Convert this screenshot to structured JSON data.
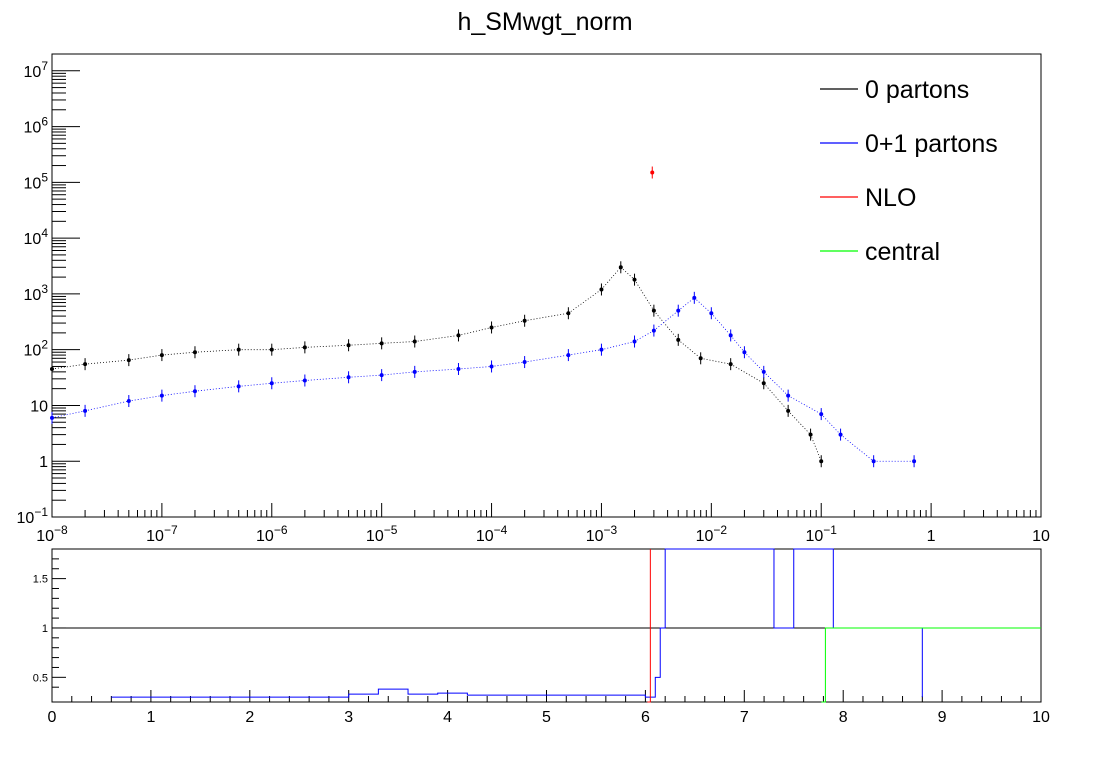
{
  "chart_data": [
    {
      "type": "scatter",
      "title": "h_SMwgt_norm",
      "xscale": "log",
      "yscale": "log",
      "xlim": [
        1e-08,
        10
      ],
      "ylim": [
        0.1,
        20000000
      ],
      "x_ticks": [
        {
          "base": "10",
          "exp": "−8"
        },
        {
          "base": "10",
          "exp": "−7"
        },
        {
          "base": "10",
          "exp": "−6"
        },
        {
          "base": "10",
          "exp": "−5"
        },
        {
          "base": "10",
          "exp": "−4"
        },
        {
          "base": "10",
          "exp": "−3"
        },
        {
          "base": "10",
          "exp": "−2"
        },
        {
          "base": "10",
          "exp": "−1"
        },
        {
          "base": "1",
          "exp": ""
        },
        {
          "base": "10",
          "exp": ""
        }
      ],
      "y_ticks": [
        {
          "base": "10",
          "exp": "−1"
        },
        {
          "base": "1",
          "exp": ""
        },
        {
          "base": "10",
          "exp": ""
        },
        {
          "base": "10",
          "exp": "2"
        },
        {
          "base": "10",
          "exp": "3"
        },
        {
          "base": "10",
          "exp": "4"
        },
        {
          "base": "10",
          "exp": "5"
        },
        {
          "base": "10",
          "exp": "6"
        },
        {
          "base": "10",
          "exp": "7"
        }
      ],
      "legend_position": "top-right",
      "series": [
        {
          "name": "0 partons",
          "color": "#000000",
          "points": [
            [
              1e-08,
              45
            ],
            [
              2e-08,
              55
            ],
            [
              5e-08,
              65
            ],
            [
              1e-07,
              80
            ],
            [
              2e-07,
              90
            ],
            [
              5e-07,
              100
            ],
            [
              1e-06,
              100
            ],
            [
              2e-06,
              110
            ],
            [
              5e-06,
              120
            ],
            [
              1e-05,
              130
            ],
            [
              2e-05,
              140
            ],
            [
              5e-05,
              180
            ],
            [
              0.0001,
              250
            ],
            [
              0.0002,
              330
            ],
            [
              0.0005,
              450
            ],
            [
              0.001,
              1200
            ],
            [
              0.0015,
              3000
            ],
            [
              0.002,
              1800
            ],
            [
              0.003,
              500
            ],
            [
              0.005,
              150
            ],
            [
              0.008,
              70
            ],
            [
              0.015,
              55
            ],
            [
              0.03,
              25
            ],
            [
              0.05,
              8
            ],
            [
              0.08,
              3
            ],
            [
              0.1,
              1
            ]
          ]
        },
        {
          "name": "0+1 partons",
          "color": "#0000ff",
          "points": [
            [
              1e-08,
              6
            ],
            [
              2e-08,
              8
            ],
            [
              5e-08,
              12
            ],
            [
              1e-07,
              15
            ],
            [
              2e-07,
              18
            ],
            [
              5e-07,
              22
            ],
            [
              1e-06,
              25
            ],
            [
              2e-06,
              28
            ],
            [
              5e-06,
              32
            ],
            [
              1e-05,
              35
            ],
            [
              2e-05,
              40
            ],
            [
              5e-05,
              45
            ],
            [
              0.0001,
              50
            ],
            [
              0.0002,
              60
            ],
            [
              0.0005,
              80
            ],
            [
              0.001,
              100
            ],
            [
              0.002,
              140
            ],
            [
              0.003,
              220
            ],
            [
              0.005,
              500
            ],
            [
              0.007,
              850
            ],
            [
              0.01,
              450
            ],
            [
              0.015,
              180
            ],
            [
              0.02,
              90
            ],
            [
              0.03,
              40
            ],
            [
              0.05,
              15
            ],
            [
              0.1,
              7
            ],
            [
              0.15,
              3
            ],
            [
              0.3,
              1
            ],
            [
              0.7,
              1
            ]
          ]
        },
        {
          "name": "NLO",
          "color": "#ff0000",
          "points": [
            [
              0.0029,
              150000
            ]
          ]
        },
        {
          "name": "central",
          "color": "#00ff00",
          "points": []
        }
      ]
    },
    {
      "type": "line",
      "xlim": [
        0,
        10
      ],
      "ylim": [
        0.25,
        1.8
      ],
      "x_ticks": [
        "0",
        "1",
        "2",
        "3",
        "4",
        "5",
        "6",
        "7",
        "8",
        "9",
        "10"
      ],
      "y_ticks": [
        "0.5",
        "1",
        "1.5"
      ],
      "reference_line": 1,
      "series": [
        {
          "name": "0+1 partons",
          "color": "#0000ff",
          "points": [
            [
              0.6,
              0.3
            ],
            [
              1,
              0.3
            ],
            [
              2.6,
              0.3
            ],
            [
              3.0,
              0.33
            ],
            [
              3.3,
              0.38
            ],
            [
              3.6,
              0.33
            ],
            [
              3.9,
              0.34
            ],
            [
              4.2,
              0.32
            ],
            [
              6.0,
              0.3
            ],
            [
              6.1,
              0.5
            ],
            [
              6.15,
              1.0
            ],
            [
              6.2,
              1.8
            ],
            [
              7.0,
              1.8
            ],
            [
              7.3,
              1.0
            ],
            [
              7.5,
              1.8
            ],
            [
              7.6,
              1.8
            ],
            [
              7.9,
              1.0
            ],
            [
              8.2,
              1.0
            ],
            [
              8.5,
              1.0
            ],
            [
              8.8,
              0.3
            ]
          ]
        },
        {
          "name": "NLO",
          "color": "#ff0000",
          "points": [
            [
              6.02,
              0.25
            ],
            [
              6.05,
              1.8
            ]
          ]
        },
        {
          "name": "central",
          "color": "#00ff00",
          "points": [
            [
              7.78,
              0.25
            ],
            [
              7.82,
              1.0
            ],
            [
              8.05,
              1.0
            ],
            [
              8.6,
              1.0
            ],
            [
              9.0,
              1.0
            ],
            [
              10.0,
              1.0
            ]
          ]
        }
      ]
    }
  ]
}
